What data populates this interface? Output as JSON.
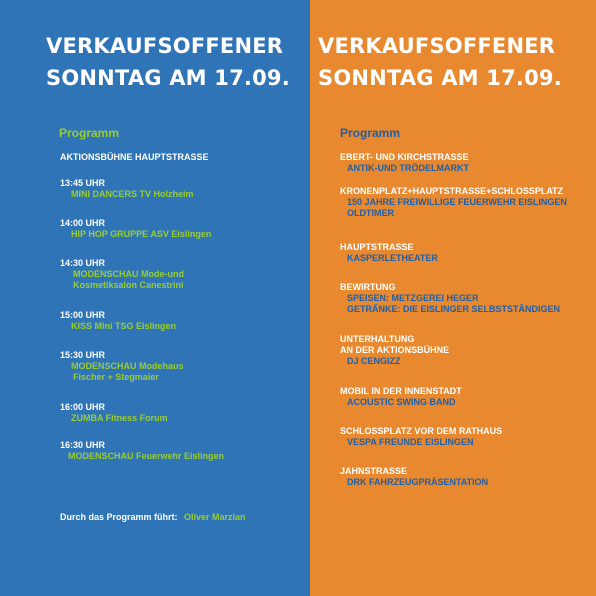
{
  "left": {
    "title_line1": "VERKAUFSOFFENER",
    "title_line2": "SONNTAG AM 17.09.",
    "heading": "Programm",
    "stage": "AKTIONSBÜHNE  HAUPTSTRASSE",
    "items": [
      {
        "time": "13:45 UHR",
        "lines": [
          "MINI DANCERS TV Holzheim"
        ]
      },
      {
        "time": "14:00 UHR",
        "lines": [
          "HIP HOP GRUPPE ASV Eislingen"
        ]
      },
      {
        "time": "14:30 UHR",
        "lines": [
          "MODENSCHAU Mode-und",
          "Kosmetiksalon Canestrini"
        ]
      },
      {
        "time": "15:00 UHR",
        "lines": [
          "KISS Mini TSG Eislingen"
        ]
      },
      {
        "time": "15:30 UHR",
        "lines": [
          "MODENSCHAU Modehaus",
          " Fischer + Stegmaier"
        ]
      },
      {
        "time": "16:00 UHR",
        "lines": [
          "ZUMBA  Fitness Forum"
        ]
      },
      {
        "time": "16:30 UHR",
        "lines": [
          "MODENSCHAU Feuerwehr Eislingen"
        ]
      }
    ],
    "footer_label": "Durch das Programm führt:",
    "footer_value": "Oliver Marzian"
  },
  "right": {
    "title_line1": "VERKAUFSOFFENER",
    "title_line2": "SONNTAG AM 17.09.",
    "heading": "Programm",
    "items": [
      {
        "heads": [
          "EBERT- UND KIRCHSTRASSE"
        ],
        "lines": [
          "ANTIK-UND TRÖDELMARKT"
        ]
      },
      {
        "heads": [
          "KRONENPLATZ+HAUPTSTRASSE+SCHLOSSPLATZ"
        ],
        "lines": [
          "150 JAHRE FREIWILLIGE FEUERWEHR EISLINGEN",
          " OLDTIMER"
        ]
      },
      {
        "heads": [
          "HAUPTSTRASSE"
        ],
        "lines": [
          "KASPERLETHEATER"
        ]
      },
      {
        "heads": [
          "BEWIRTUNG"
        ],
        "lines": [
          "SPEISEN: METZGEREI HEGER",
          "GETRÄNKE: DIE EISLINGER SELBSTSTÄNDIGEN"
        ]
      },
      {
        "heads": [
          "UNTERHALTUNG",
          "AN DER AKTIONSBÜHNE"
        ],
        "lines": [
          "DJ CENGIZZ"
        ]
      },
      {
        "heads": [
          "MOBIL IN DER INNENSTADT"
        ],
        "lines": [
          "ACOUSTIC SWING BAND"
        ]
      },
      {
        "heads": [
          "SCHLOSSPLATZ  VOR DEM RATHAUS"
        ],
        "lines": [
          "VESPA FREUNDE EISLINGEN"
        ]
      },
      {
        "heads": [
          "JAHNSTRASSE"
        ],
        "lines": [
          "DRK FAHRZEUGPRÄSENTATION"
        ]
      }
    ]
  },
  "colors": {
    "left_bg": "#2f74b6",
    "right_bg": "#e8892f",
    "left_accent": "#9acd2f",
    "right_accent": "#1f5fa8"
  }
}
